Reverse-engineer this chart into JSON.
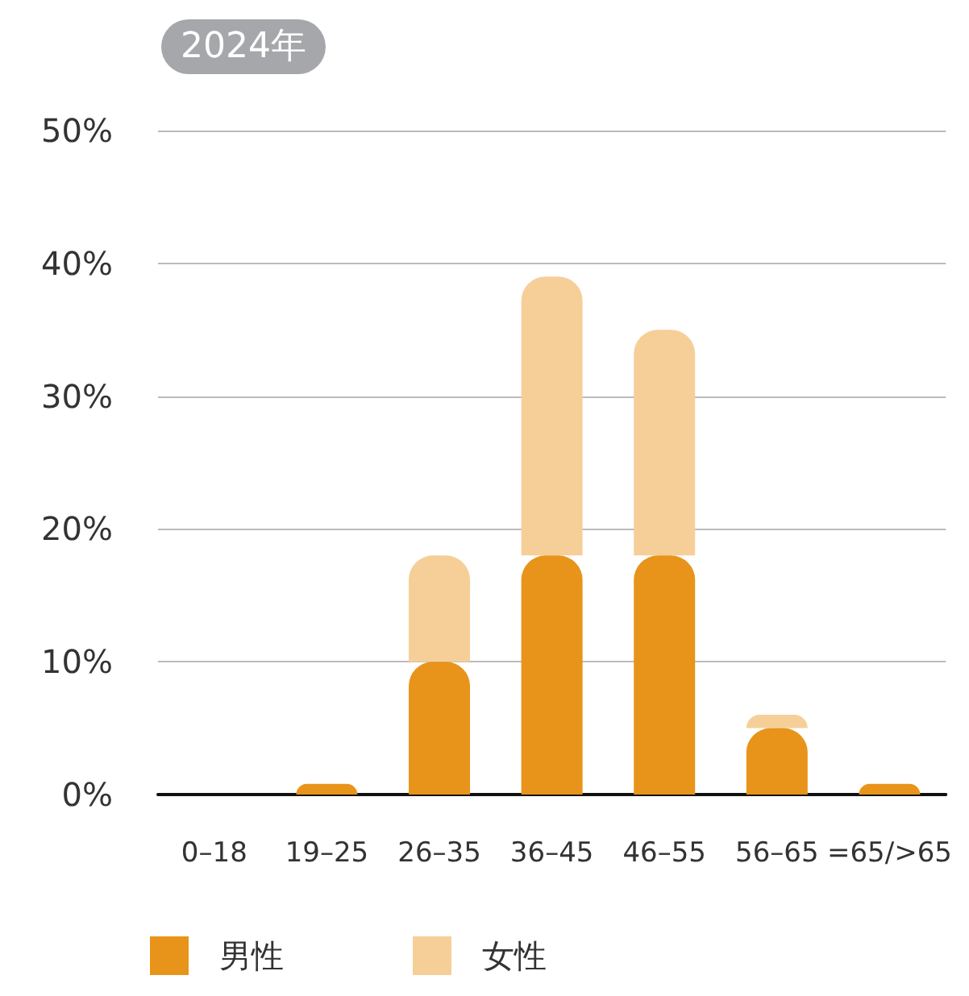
{
  "chart_data": {
    "type": "bar",
    "title": "2024年",
    "categories": [
      "0–18",
      "19–25",
      "26–35",
      "36–45",
      "46–55",
      "56–65",
      "=65/>65"
    ],
    "series": [
      {
        "name": "男性",
        "color": "#e8941a",
        "values": [
          0,
          0.8,
          10,
          18,
          18,
          5,
          0.8
        ]
      },
      {
        "name": "女性",
        "color": "#f6cf98",
        "values": [
          0,
          0,
          8,
          21,
          17,
          1,
          0
        ]
      }
    ],
    "stacked": true,
    "ylim": [
      0,
      50
    ],
    "yticks": [
      {
        "value": 0,
        "label": "0%"
      },
      {
        "value": 10,
        "label": "10%"
      },
      {
        "value": 20,
        "label": "20%"
      },
      {
        "value": 30,
        "label": "30%"
      },
      {
        "value": 40,
        "label": "40%"
      },
      {
        "value": 50,
        "label": "50%"
      }
    ],
    "grid": "y",
    "legend": "bottom left"
  }
}
